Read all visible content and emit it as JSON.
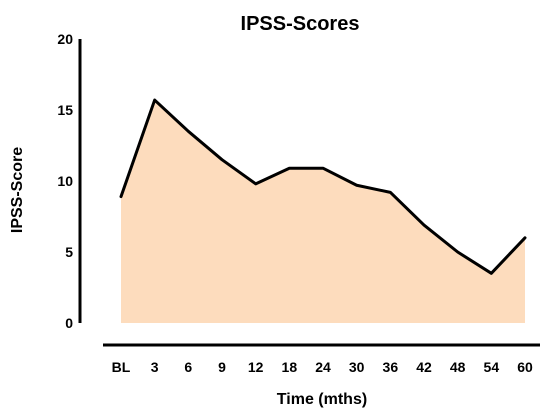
{
  "chart_data": {
    "type": "area",
    "title": "IPSS-Scores",
    "xlabel": "Time (mths)",
    "ylabel": "IPSS-Score",
    "categories": [
      "BL",
      "3",
      "6",
      "9",
      "12",
      "18",
      "24",
      "30",
      "36",
      "42",
      "48",
      "54",
      "60"
    ],
    "values": [
      8.9,
      15.7,
      13.5,
      11.5,
      9.8,
      10.9,
      10.9,
      9.7,
      9.2,
      6.9,
      5.0,
      3.5,
      6.0
    ],
    "ylim": [
      0,
      20
    ],
    "yticks": [
      "0",
      "5",
      "10",
      "15",
      "20"
    ],
    "grid": false,
    "legend": "none",
    "colors": {
      "fill": "#fddcbd",
      "line": "#000000",
      "axis": "#000000"
    }
  }
}
